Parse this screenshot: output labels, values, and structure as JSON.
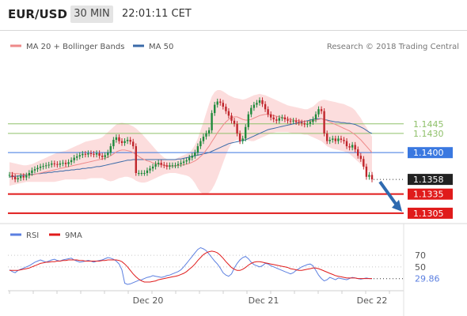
{
  "header": {
    "symbol": "EUR/USD",
    "timeframe": "30 MIN",
    "time": "22:01:11 CET"
  },
  "legend": {
    "ma20_label": "MA 20 + Bollinger Bands",
    "ma50_label": "MA 50",
    "credit": "Research © 2018 Trading Central",
    "rsi_label": "RSI",
    "ma9_label": "9MA"
  },
  "colors": {
    "ma20": "#ee8a8a",
    "ma50": "#3a6aa8",
    "band": "#fbd2d2",
    "up": "#1f8a3c",
    "down": "#c0262c",
    "resistance": "#8fc06a",
    "pivot": "#3a78e0",
    "support": "#e01b1b",
    "last": "#222222",
    "arrow": "#2e6ab0",
    "rsi": "#5b7fe0",
    "rsi_ma": "#e01b1b"
  },
  "chart_data": [
    {
      "type": "candlestick",
      "title": "EUR/USD 30 MIN",
      "ylim": [
        1.129,
        1.155
      ],
      "x_ticks": [
        "Dec 20",
        "Dec 21",
        "Dec 22"
      ],
      "n_bars": 130,
      "last_price": 1.1358,
      "levels": [
        {
          "value": 1.1445,
          "label": "1.1445",
          "kind": "resistance"
        },
        {
          "value": 1.143,
          "label": "1.1430",
          "kind": "resistance"
        },
        {
          "value": 1.14,
          "label": "1.1400",
          "kind": "pivot"
        },
        {
          "value": 1.1358,
          "label": "1.1358",
          "kind": "last"
        },
        {
          "value": 1.1335,
          "label": "1.1335",
          "kind": "support"
        },
        {
          "value": 1.1305,
          "label": "1.1305",
          "kind": "support"
        }
      ],
      "close": [
        1.1365,
        1.1362,
        1.1358,
        1.136,
        1.1363,
        1.1361,
        1.1364,
        1.1368,
        1.1372,
        1.1374,
        1.1376,
        1.1378,
        1.1379,
        1.138,
        1.1381,
        1.1383,
        1.1382,
        1.1381,
        1.1383,
        1.1384,
        1.1382,
        1.1385,
        1.1388,
        1.1392,
        1.1394,
        1.1396,
        1.1398,
        1.1397,
        1.1399,
        1.1398,
        1.1397,
        1.1399,
        1.1395,
        1.1393,
        1.1396,
        1.14,
        1.141,
        1.142,
        1.1424,
        1.1418,
        1.1415,
        1.1418,
        1.142,
        1.1417,
        1.141,
        1.1368,
        1.1368,
        1.1368,
        1.1368,
        1.1372,
        1.1375,
        1.1378,
        1.1382,
        1.1384,
        1.1381,
        1.138,
        1.1378,
        1.138,
        1.138,
        1.138,
        1.1382,
        1.1384,
        1.1386,
        1.1388,
        1.1392,
        1.1395,
        1.14,
        1.141,
        1.1418,
        1.1425,
        1.143,
        1.1435,
        1.1462,
        1.1475,
        1.148,
        1.1478,
        1.1472,
        1.1465,
        1.1458,
        1.145,
        1.1445,
        1.143,
        1.1418,
        1.1422,
        1.144,
        1.146,
        1.147,
        1.1475,
        1.1478,
        1.1482,
        1.1476,
        1.1468,
        1.146,
        1.1455,
        1.1452,
        1.145,
        1.1454,
        1.1455,
        1.1452,
        1.145,
        1.1449,
        1.145,
        1.1448,
        1.1447,
        1.1446,
        1.1444,
        1.1445,
        1.1448,
        1.1452,
        1.146,
        1.1468,
        1.1465,
        1.143,
        1.1418,
        1.142,
        1.1422,
        1.1418,
        1.1422,
        1.142,
        1.1418,
        1.141,
        1.1408,
        1.1412,
        1.1405,
        1.1395,
        1.139,
        1.1378,
        1.1362,
        1.1365,
        1.1358
      ],
      "ma20": [
        1.1368,
        1.1368,
        1.1367,
        1.1367,
        1.1366,
        1.1366,
        1.1365,
        1.1365,
        1.1365,
        1.1366,
        1.1367,
        1.1368,
        1.1369,
        1.137,
        1.1371,
        1.1372,
        1.1373,
        1.1374,
        1.1375,
        1.1376,
        1.1377,
        1.1378,
        1.1379,
        1.138,
        1.1381,
        1.1382,
        1.1383,
        1.1384,
        1.1385,
        1.1386,
        1.1387,
        1.1388,
        1.1389,
        1.139,
        1.1391,
        1.1393,
        1.1395,
        1.1398,
        1.1401,
        1.1403,
        1.1404,
        1.1404,
        1.1403,
        1.1402,
        1.14,
        1.1397,
        1.1394,
        1.1391,
        1.1389,
        1.1387,
        1.1386,
        1.1384,
        1.1383,
        1.1382,
        1.1381,
        1.138,
        1.1379,
        1.1379,
        1.1379,
        1.1379,
        1.138,
        1.138,
        1.1381,
        1.1382,
        1.1383,
        1.1385,
        1.1387,
        1.139,
        1.1394,
        1.1398,
        1.1404,
        1.141,
        1.1417,
        1.1424,
        1.1431,
        1.1437,
        1.1443,
        1.1448,
        1.1452,
        1.1455,
        1.1456,
        1.1456,
        1.1454,
        1.1452,
        1.1451,
        1.1451,
        1.1452,
        1.1454,
        1.1456,
        1.1458,
        1.1459,
        1.146,
        1.146,
        1.1459,
        1.1458,
        1.1457,
        1.1456,
        1.1455,
        1.1454,
        1.1453,
        1.1452,
        1.1451,
        1.145,
        1.145,
        1.1449,
        1.1449,
        1.1449,
        1.1449,
        1.145,
        1.1451,
        1.1452,
        1.1453,
        1.1452,
        1.145,
        1.1448,
        1.1446,
        1.1444,
        1.1442,
        1.144,
        1.1438,
        1.1436,
        1.1434,
        1.1431,
        1.1428,
        1.1424,
        1.142,
        1.1415,
        1.141,
        1.1405,
        1.14
      ],
      "band_upper": [
        1.1385,
        1.1384,
        1.1383,
        1.1382,
        1.1381,
        1.138,
        1.138,
        1.1381,
        1.1382,
        1.1384,
        1.1386,
        1.1388,
        1.139,
        1.1392,
        1.1394,
        1.1396,
        1.1398,
        1.14,
        1.1401,
        1.1402,
        1.1403,
        1.1405,
        1.1407,
        1.1409,
        1.1411,
        1.1413,
        1.1415,
        1.1417,
        1.1418,
        1.1419,
        1.142,
        1.1421,
        1.1422,
        1.1424,
        1.1428,
        1.1432,
        1.1436,
        1.144,
        1.1444,
        1.1446,
        1.1447,
        1.1446,
        1.1445,
        1.1443,
        1.1441,
        1.1438,
        1.1434,
        1.143,
        1.1425,
        1.142,
        1.1415,
        1.141,
        1.1405,
        1.14,
        1.1396,
        1.1392,
        1.139,
        1.1389,
        1.1389,
        1.139,
        1.1392,
        1.1394,
        1.1396,
        1.1398,
        1.14,
        1.1405,
        1.1412,
        1.1422,
        1.1435,
        1.1448,
        1.1462,
        1.1476,
        1.1488,
        1.1495,
        1.1498,
        1.1498,
        1.1496,
        1.1493,
        1.149,
        1.1488,
        1.1486,
        1.1485,
        1.1484,
        1.1483,
        1.1484,
        1.1486,
        1.1488,
        1.149,
        1.1491,
        1.1492,
        1.1491,
        1.149,
        1.1488,
        1.1486,
        1.1484,
        1.1482,
        1.148,
        1.1478,
        1.1476,
        1.1474,
        1.1473,
        1.1472,
        1.1471,
        1.147,
        1.1469,
        1.1468,
        1.1468,
        1.147,
        1.1472,
        1.1476,
        1.148,
        1.1482,
        1.1483,
        1.1482,
        1.1481,
        1.148,
        1.1479,
        1.1478,
        1.1477,
        1.1476,
        1.1474,
        1.1472,
        1.147,
        1.1466,
        1.146,
        1.1454,
        1.1446,
        1.144,
        1.1432,
        1.1425
      ],
      "band_lower": [
        1.1348,
        1.1349,
        1.135,
        1.1351,
        1.1352,
        1.1353,
        1.1354,
        1.1354,
        1.1354,
        1.1354,
        1.1354,
        1.1354,
        1.1354,
        1.1354,
        1.1354,
        1.1354,
        1.1354,
        1.1355,
        1.1356,
        1.1357,
        1.1358,
        1.1358,
        1.1358,
        1.1358,
        1.1358,
        1.1358,
        1.1358,
        1.1358,
        1.1359,
        1.136,
        1.136,
        1.136,
        1.136,
        1.136,
        1.1358,
        1.1356,
        1.1355,
        1.1356,
        1.1358,
        1.136,
        1.1361,
        1.1362,
        1.1362,
        1.1361,
        1.1359,
        1.1356,
        1.1354,
        1.1353,
        1.1353,
        1.1354,
        1.1356,
        1.1358,
        1.136,
        1.1362,
        1.1364,
        1.1366,
        1.1367,
        1.1368,
        1.1368,
        1.1368,
        1.1367,
        1.1366,
        1.1365,
        1.1364,
        1.1362,
        1.1358,
        1.1352,
        1.1344,
        1.1338,
        1.1335,
        1.1335,
        1.1337,
        1.1342,
        1.135,
        1.136,
        1.1372,
        1.1384,
        1.1396,
        1.1406,
        1.1414,
        1.1418,
        1.142,
        1.142,
        1.142,
        1.142,
        1.1419,
        1.1418,
        1.1418,
        1.142,
        1.1422,
        1.1424,
        1.1426,
        1.1428,
        1.143,
        1.1431,
        1.1432,
        1.1432,
        1.1432,
        1.1432,
        1.1432,
        1.1431,
        1.143,
        1.143,
        1.143,
        1.1429,
        1.1428,
        1.1428,
        1.1426,
        1.1424,
        1.1422,
        1.142,
        1.1418,
        1.1414,
        1.141,
        1.1408,
        1.1406,
        1.1405,
        1.1404,
        1.1403,
        1.1402,
        1.14,
        1.1398,
        1.1394,
        1.139,
        1.1386,
        1.1382,
        1.1378,
        1.1374,
        1.137,
        1.1368
      ],
      "ma50": [
        1.1362,
        1.1362,
        1.1363,
        1.1363,
        1.1364,
        1.1364,
        1.1365,
        1.1365,
        1.1366,
        1.1366,
        1.1367,
        1.1367,
        1.1368,
        1.1368,
        1.1369,
        1.1369,
        1.137,
        1.137,
        1.1371,
        1.1371,
        1.1372,
        1.1372,
        1.1373,
        1.1373,
        1.1374,
        1.1374,
        1.1375,
        1.1375,
        1.1376,
        1.1376,
        1.1377,
        1.1378,
        1.1378,
        1.1379,
        1.138,
        1.1381,
        1.1382,
        1.1383,
        1.1384,
        1.1385,
        1.1386,
        1.1387,
        1.1388,
        1.1388,
        1.1389,
        1.1389,
        1.1389,
        1.1389,
        1.1389,
        1.1389,
        1.1389,
        1.1389,
        1.1389,
        1.1389,
        1.1389,
        1.1389,
        1.1389,
        1.1389,
        1.1389,
        1.1389,
        1.139,
        1.139,
        1.1391,
        1.1392,
        1.1393,
        1.1394,
        1.1395,
        1.1396,
        1.1397,
        1.1398,
        1.1399,
        1.14,
        1.1402,
        1.1404,
        1.1406,
        1.1408,
        1.141,
        1.1412,
        1.1414,
        1.1415,
        1.1416,
        1.1417,
        1.1418,
        1.1419,
        1.142,
        1.1422,
        1.1424,
        1.1426,
        1.1428,
        1.143,
        1.1432,
        1.1434,
        1.1436,
        1.1437,
        1.1438,
        1.1439,
        1.144,
        1.1441,
        1.1442,
        1.1443,
        1.1444,
        1.1445,
        1.1446,
        1.1447,
        1.1448,
        1.1449,
        1.145,
        1.1451,
        1.1452,
        1.1453,
        1.1453,
        1.1453,
        1.1452,
        1.1451,
        1.145,
        1.1449,
        1.1448,
        1.1448,
        1.1447,
        1.1447,
        1.1446,
        1.1446,
        1.1445,
        1.1444,
        1.1442,
        1.144,
        1.1438,
        1.1435,
        1.1432,
        1.143
      ]
    },
    {
      "type": "line",
      "title": "RSI",
      "ylim": [
        0,
        100
      ],
      "y_ticks": [
        70,
        50
      ],
      "last_value": 29.86,
      "series": [
        {
          "name": "RSI",
          "values": [
            45,
            42,
            40,
            44,
            46,
            48,
            50,
            52,
            55,
            58,
            60,
            62,
            60,
            58,
            60,
            62,
            63,
            61,
            60,
            62,
            63,
            64,
            65,
            62,
            60,
            58,
            59,
            60,
            61,
            60,
            58,
            60,
            61,
            62,
            64,
            66,
            65,
            63,
            60,
            55,
            45,
            22,
            20,
            21,
            23,
            25,
            27,
            28,
            30,
            32,
            33,
            35,
            34,
            33,
            32,
            33,
            35,
            36,
            38,
            40,
            42,
            45,
            50,
            56,
            62,
            68,
            74,
            80,
            83,
            81,
            78,
            72,
            66,
            60,
            55,
            48,
            40,
            36,
            34,
            38,
            48,
            56,
            62,
            66,
            68,
            64,
            58,
            54,
            52,
            50,
            52,
            56,
            55,
            52,
            50,
            48,
            46,
            44,
            42,
            40,
            38,
            40,
            44,
            47,
            50,
            52,
            54,
            55,
            52,
            44,
            36,
            30,
            26,
            28,
            32,
            30,
            28,
            31,
            30,
            29,
            28,
            30,
            32,
            31,
            30,
            29,
            30,
            31,
            30,
            29.86
          ]
        },
        {
          "name": "9MA",
          "values": [
            44,
            44,
            44,
            44,
            45,
            46,
            47,
            48,
            50,
            52,
            54,
            56,
            57,
            58,
            58,
            59,
            59,
            60,
            60,
            61,
            61,
            62,
            62,
            62,
            62,
            61,
            61,
            60,
            60,
            60,
            60,
            60,
            60,
            61,
            61,
            62,
            62,
            62,
            62,
            61,
            59,
            55,
            50,
            44,
            38,
            33,
            29,
            26,
            24,
            24,
            24,
            25,
            26,
            28,
            29,
            30,
            31,
            32,
            33,
            34,
            35,
            37,
            39,
            42,
            46,
            50,
            55,
            61,
            66,
            71,
            74,
            76,
            77,
            76,
            74,
            70,
            65,
            59,
            54,
            49,
            46,
            44,
            44,
            46,
            49,
            53,
            56,
            58,
            59,
            59,
            58,
            57,
            56,
            55,
            54,
            53,
            52,
            51,
            50,
            49,
            47,
            46,
            45,
            44,
            44,
            45,
            46,
            47,
            48,
            48,
            47,
            45,
            43,
            41,
            39,
            37,
            35,
            34,
            33,
            32,
            31,
            31,
            31,
            31,
            30,
            30,
            30,
            30,
            30,
            30
          ]
        }
      ]
    }
  ]
}
